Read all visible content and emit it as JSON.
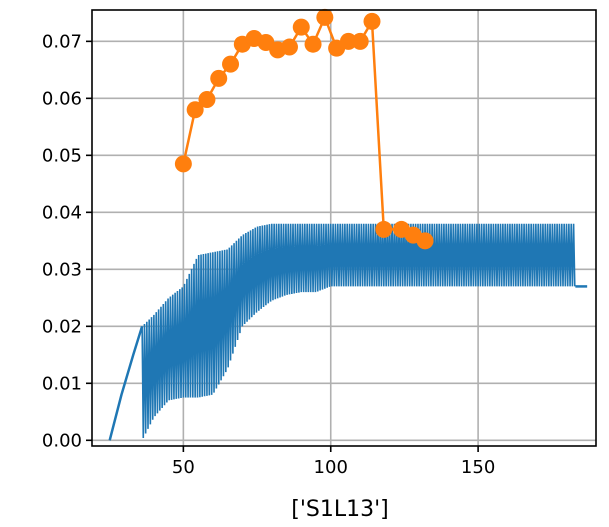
{
  "chart_data": {
    "type": "line",
    "title": "",
    "xlabel": "['S1L13']",
    "ylabel": "",
    "xlim": [
      19,
      190
    ],
    "ylim": [
      -0.001,
      0.0755
    ],
    "grid": true,
    "legend": "none",
    "xticks": [
      50,
      100,
      150
    ],
    "xtick_labels": [
      "50",
      "100",
      "150"
    ],
    "yticks": [
      0.0,
      0.01,
      0.02,
      0.03,
      0.04,
      0.05,
      0.06,
      0.07
    ],
    "ytick_labels": [
      "0.00",
      "0.01",
      "0.02",
      "0.03",
      "0.04",
      "0.05",
      "0.06",
      "0.07"
    ],
    "colors": {
      "blue": "#1f77b4",
      "orange": "#ff7f0e",
      "grid": "#b0b0b0"
    },
    "series": [
      {
        "style": "line-filled-oscillation",
        "color": "#1f77b4",
        "ramp": {
          "x": [
            25,
            29,
            33,
            36
          ],
          "y": [
            0.0,
            0.008,
            0.015,
            0.02
          ]
        },
        "upper": {
          "x": [
            36,
            40,
            45,
            50,
            55,
            60,
            65,
            70,
            75,
            80,
            85,
            90,
            100,
            110,
            120,
            150,
            183
          ],
          "y": [
            0.02,
            0.022,
            0.025,
            0.027,
            0.0325,
            0.033,
            0.0335,
            0.036,
            0.0375,
            0.038,
            0.038,
            0.038,
            0.038,
            0.038,
            0.038,
            0.038,
            0.038
          ]
        },
        "lower": {
          "x": [
            36,
            40,
            45,
            50,
            55,
            60,
            65,
            70,
            75,
            80,
            85,
            90,
            95,
            100,
            110,
            150,
            183
          ],
          "y": [
            0.0,
            0.004,
            0.007,
            0.0075,
            0.0075,
            0.008,
            0.0125,
            0.02,
            0.0225,
            0.0245,
            0.0255,
            0.026,
            0.026,
            0.027,
            0.027,
            0.027,
            0.027
          ]
        },
        "tail": {
          "x": [
            183,
            187
          ],
          "y": [
            0.027,
            0.027
          ]
        }
      },
      {
        "style": "line-marker",
        "color": "#ff7f0e",
        "x": [
          50,
          54,
          58,
          62,
          66,
          70,
          74,
          78,
          82,
          86,
          90,
          94,
          98,
          102,
          106,
          110,
          114,
          118,
          124,
          128,
          132
        ],
        "y": [
          0.0485,
          0.058,
          0.0598,
          0.0635,
          0.066,
          0.0695,
          0.0705,
          0.0698,
          0.0685,
          0.069,
          0.0725,
          0.0695,
          0.0742,
          0.0688,
          0.07,
          0.07,
          0.0735,
          0.037,
          0.037,
          0.036,
          0.035
        ]
      }
    ]
  }
}
